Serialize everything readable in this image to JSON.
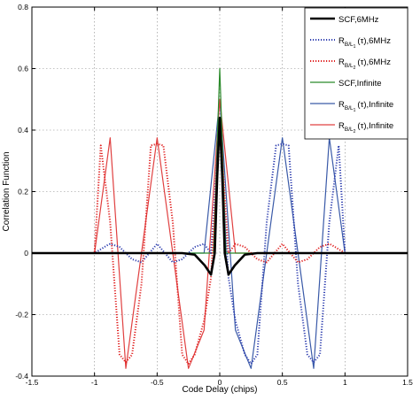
{
  "chart_data": {
    "type": "line",
    "xlabel": "Code Delay (chips)",
    "ylabel": "Correlation Function",
    "xlim": [
      -1.5,
      1.5
    ],
    "ylim": [
      -0.4,
      0.8
    ],
    "x_ticks": [
      -1.5,
      -1,
      -0.5,
      0,
      0.5,
      1,
      1.5
    ],
    "x_tick_labels": [
      "-1.5",
      "-1",
      "-0.5",
      "0",
      "0.5",
      "1",
      "1.5"
    ],
    "y_ticks": [
      -0.4,
      -0.2,
      0,
      0.2,
      0.4,
      0.6,
      0.8
    ],
    "y_tick_labels": [
      "-0.4",
      "-0.2",
      "0",
      "0.2",
      "0.4",
      "0.6",
      "0.8"
    ],
    "grid": true,
    "legend_position": "top-right",
    "series": [
      {
        "name": "SCF,6MHz",
        "legend_main": "SCF,6MHz",
        "legend_sub": "",
        "color": "#000000",
        "dash": "solid",
        "width": 2.6,
        "x": [
          -1.5,
          -0.3,
          -0.2,
          -0.12,
          -0.07,
          -0.04,
          -0.02,
          0,
          0.02,
          0.04,
          0.07,
          0.12,
          0.2,
          0.3,
          1.5
        ],
        "y": [
          0,
          0,
          -0.005,
          -0.04,
          -0.07,
          0,
          0.25,
          0.44,
          0.25,
          0,
          -0.07,
          -0.04,
          -0.005,
          0,
          0
        ]
      },
      {
        "name": "R B/L1 (τ),6MHz",
        "legend_main": "R",
        "legend_sub": "B/L",
        "legend_subsub": "1",
        "legend_suffix": "(τ),6MHz",
        "color": "#2f3fb0",
        "dash": "dotted",
        "width": 2,
        "x": [
          -1.5,
          -1,
          -0.9,
          -0.875,
          -0.8,
          -0.75,
          -0.7,
          -0.625,
          -0.5,
          -0.375,
          -0.3,
          -0.25,
          -0.2,
          -0.125,
          -0.07,
          0,
          0.07,
          0.125,
          0.2,
          0.25,
          0.3,
          0.375,
          0.45,
          0.5,
          0.55,
          0.625,
          0.7,
          0.75,
          0.8,
          0.875,
          0.95,
          1,
          1.5
        ],
        "y": [
          0,
          0,
          0.025,
          0.03,
          0.02,
          0,
          -0.02,
          -0.03,
          0.03,
          -0.03,
          -0.02,
          0,
          0.02,
          0.03,
          0,
          0.43,
          -0.08,
          -0.22,
          -0.33,
          -0.36,
          -0.33,
          0.1,
          0.35,
          0.355,
          0.35,
          -0.1,
          -0.33,
          -0.355,
          -0.33,
          0.1,
          0.35,
          0,
          0
        ]
      },
      {
        "name": "R B/L2 (τ),6MHz",
        "legend_main": "R",
        "legend_sub": "B/L",
        "legend_subsub": "2",
        "legend_suffix": "(τ),6MHz",
        "color": "#e02020",
        "dash": "dotted",
        "width": 2,
        "x": [
          -1.5,
          -1,
          -0.95,
          -0.875,
          -0.8,
          -0.75,
          -0.7,
          -0.625,
          -0.55,
          -0.5,
          -0.45,
          -0.375,
          -0.3,
          -0.25,
          -0.2,
          -0.125,
          -0.07,
          0,
          0.07,
          0.125,
          0.2,
          0.25,
          0.3,
          0.375,
          0.5,
          0.625,
          0.7,
          0.75,
          0.8,
          0.875,
          0.9,
          1,
          1.5
        ],
        "y": [
          0,
          0,
          0.35,
          0.1,
          -0.33,
          -0.355,
          -0.33,
          -0.1,
          0.35,
          0.355,
          0.35,
          0.1,
          -0.33,
          -0.36,
          -0.33,
          -0.22,
          -0.08,
          0.43,
          0,
          0.03,
          0.02,
          0,
          -0.02,
          -0.03,
          0.03,
          -0.03,
          -0.02,
          0,
          0.02,
          0.03,
          0.025,
          0,
          0
        ]
      },
      {
        "name": "SCF,Infinite",
        "legend_main": "SCF,Infinite",
        "legend_sub": "",
        "color": "#2a8a2a",
        "dash": "solid",
        "width": 1.2,
        "x": [
          -1.5,
          -0.05,
          0,
          0.05,
          1.5
        ],
        "y": [
          0,
          0,
          0.6,
          0,
          0
        ]
      },
      {
        "name": "R B/L1 (τ),Infinite",
        "legend_main": "R",
        "legend_sub": "B/L",
        "legend_subsub": "1",
        "legend_suffix": "(τ),Infinite",
        "color": "#3a5aa8",
        "dash": "solid",
        "width": 1.2,
        "x": [
          -1.5,
          -1,
          -0.875,
          -0.75,
          -0.625,
          -0.5,
          -0.375,
          -0.25,
          -0.125,
          0,
          0.125,
          0.25,
          0.375,
          0.5,
          0.625,
          0.75,
          0.875,
          1,
          1.5
        ],
        "y": [
          0,
          0,
          0,
          0,
          0,
          0,
          0,
          0,
          0,
          0.5,
          -0.25,
          -0.375,
          0,
          0.375,
          0,
          -0.375,
          0.375,
          0,
          0
        ]
      },
      {
        "name": "R B/L2 (τ),Infinite",
        "legend_main": "R",
        "legend_sub": "B/L",
        "legend_subsub": "2",
        "legend_suffix": "(τ),Infinite",
        "color": "#e04040",
        "dash": "solid",
        "width": 1.2,
        "x": [
          -1.5,
          -1,
          -0.875,
          -0.75,
          -0.625,
          -0.5,
          -0.375,
          -0.25,
          -0.125,
          0,
          0.125,
          0.25,
          0.375,
          0.5,
          0.625,
          0.75,
          0.875,
          1,
          1.5
        ],
        "y": [
          0,
          0,
          0.375,
          -0.375,
          0,
          0.375,
          0,
          -0.375,
          -0.25,
          0.5,
          0,
          0,
          0,
          0,
          0,
          0,
          0,
          0,
          0
        ]
      }
    ]
  }
}
